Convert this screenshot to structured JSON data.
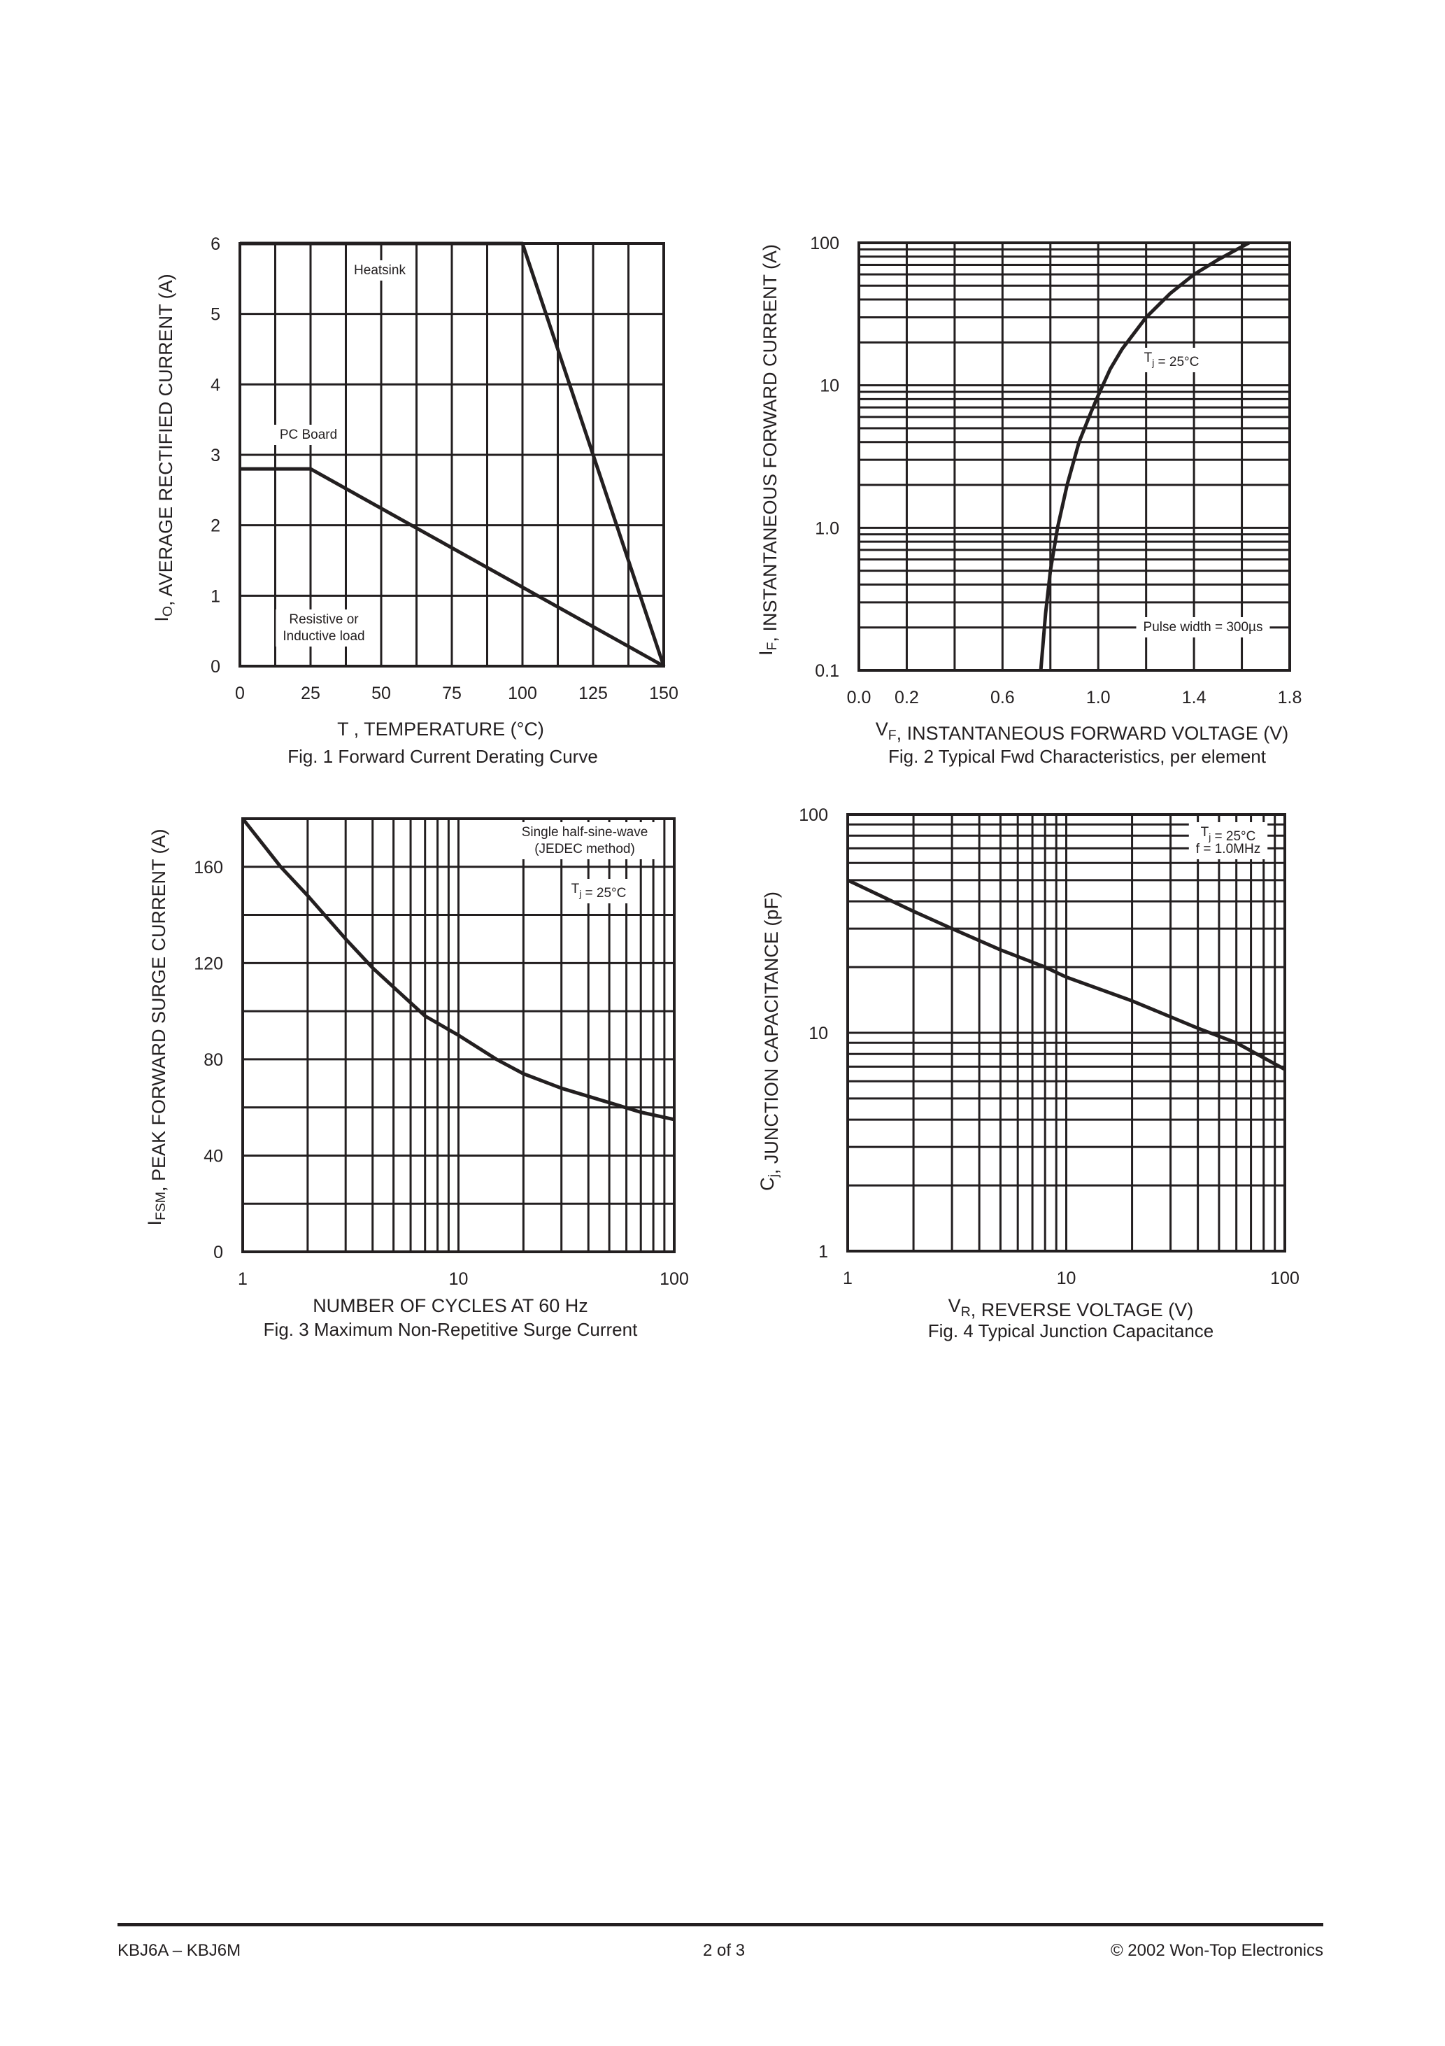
{
  "footer": {
    "left": "KBJ6A – KBJ6M",
    "center": "2 of 3",
    "right": "© 2002 Won-Top Electronics"
  },
  "colors": {
    "ink": "#231f20",
    "background": "#ffffff"
  },
  "chart_data": [
    {
      "type": "line",
      "caption": "Fig. 1  Forward Current Derating Curve",
      "xlabel": {
        "pre": "T",
        "sub": "",
        "post": " , TEMPERATURE (°C)"
      },
      "ylabel": {
        "pre": "I",
        "sub": "O",
        "post": ", AVERAGE RECTIFIED CURRENT (A)"
      },
      "xscale": "linear",
      "yscale": "linear",
      "xlim": [
        0,
        150
      ],
      "ylim": [
        0,
        6
      ],
      "xticks": [
        {
          "v": 0,
          "label": "0"
        },
        {
          "v": 25,
          "label": "25"
        },
        {
          "v": 50,
          "label": "50"
        },
        {
          "v": 75,
          "label": "75"
        },
        {
          "v": 100,
          "label": "100"
        },
        {
          "v": 125,
          "label": "125"
        },
        {
          "v": 150,
          "label": "150"
        }
      ],
      "yticks": [
        {
          "v": 0,
          "label": "0"
        },
        {
          "v": 1,
          "label": "1"
        },
        {
          "v": 2,
          "label": "2"
        },
        {
          "v": 3,
          "label": "3"
        },
        {
          "v": 4,
          "label": "4"
        },
        {
          "v": 5,
          "label": "5"
        },
        {
          "v": 6,
          "label": "6"
        }
      ],
      "grid": true,
      "series": [
        {
          "name": "Heatsink",
          "x": [
            0,
            100,
            150
          ],
          "y": [
            6,
            6,
            0
          ]
        },
        {
          "name": "PC Board",
          "x": [
            0,
            25,
            150
          ],
          "y": [
            2.8,
            2.8,
            0
          ]
        }
      ],
      "annotations": [
        {
          "lines": [
            [
              {
                "t": "Heatsink"
              }
            ]
          ]
        },
        {
          "lines": [
            [
              {
                "t": "PC Board"
              }
            ]
          ]
        },
        {
          "lines": [
            [
              {
                "t": "Resistive or"
              }
            ],
            [
              {
                "t": "Inductive load"
              }
            ]
          ]
        }
      ]
    },
    {
      "type": "line",
      "caption": "Fig. 2  Typical Fwd Characteristics, per element",
      "xlabel": {
        "pre": "V",
        "sub": "F",
        "post": ", INSTANTANEOUS FORWARD VOLTAGE (V)"
      },
      "ylabel": {
        "pre": "I",
        "sub": "F",
        "post": ", INSTANTANEOUS FORWARD CURRENT (A)"
      },
      "xscale": "linear",
      "yscale": "log",
      "xlim": [
        0,
        1.8
      ],
      "ylim": [
        0.1,
        100
      ],
      "xticks": [
        {
          "v": 0,
          "label": "0.0"
        },
        {
          "v": 0.2,
          "label": "0.2"
        },
        {
          "v": 0.6,
          "label": "0.6"
        },
        {
          "v": 1.0,
          "label": "1.0"
        },
        {
          "v": 1.4,
          "label": "1.4"
        },
        {
          "v": 1.8,
          "label": "1.8"
        }
      ],
      "yticks": [
        {
          "v": 0.1,
          "label": "0.1"
        },
        {
          "v": 1,
          "label": "1.0"
        },
        {
          "v": 10,
          "label": "10"
        },
        {
          "v": 100,
          "label": "100"
        }
      ],
      "grid": true,
      "series": [
        {
          "x": [
            0.76,
            0.78,
            0.8,
            0.83,
            0.87,
            0.92,
            0.97,
            1.0,
            1.05,
            1.1,
            1.2,
            1.3,
            1.4,
            1.5,
            1.63
          ],
          "y": [
            0.1,
            0.25,
            0.5,
            1.0,
            2.0,
            4.0,
            6.5,
            8.5,
            13,
            18,
            30,
            44,
            60,
            76,
            100
          ]
        }
      ],
      "annotations": [
        {
          "lines": [
            [
              {
                "t": "T"
              },
              {
                "sub": "j"
              },
              {
                "t": " = 25°C"
              }
            ]
          ]
        },
        {
          "lines": [
            [
              {
                "t": "Pulse width = 300µs"
              }
            ]
          ]
        }
      ]
    },
    {
      "type": "line",
      "caption": "Fig. 3  Maximum Non-Repetitive Surge Current",
      "xlabel": {
        "pre": "NUMBER OF CYCLES AT 60 Hz",
        "sub": "",
        "post": ""
      },
      "ylabel": {
        "pre": "I",
        "sub": "FSM",
        "post": ", PEAK FORWARD SURGE CURRENT (A)"
      },
      "xscale": "log",
      "yscale": "linear",
      "xlim": [
        1,
        100
      ],
      "ylim": [
        0,
        180
      ],
      "xticks": [
        {
          "v": 1,
          "label": "1"
        },
        {
          "v": 10,
          "label": "10"
        },
        {
          "v": 100,
          "label": "100"
        }
      ],
      "yticks": [
        {
          "v": 0,
          "label": "0"
        },
        {
          "v": 40,
          "label": "40"
        },
        {
          "v": 80,
          "label": "80"
        },
        {
          "v": 120,
          "label": "120"
        },
        {
          "v": 160,
          "label": "160"
        }
      ],
      "grid": true,
      "series": [
        {
          "x": [
            1,
            1.5,
            2,
            3,
            4,
            5,
            7,
            10,
            15,
            20,
            30,
            50,
            70,
            100
          ],
          "y": [
            180,
            160,
            148,
            130,
            118,
            110,
            98,
            90,
            80,
            74,
            68,
            62,
            58,
            55
          ]
        }
      ],
      "annotations": [
        {
          "lines": [
            [
              {
                "t": "Single half-sine-wave"
              }
            ],
            [
              {
                "t": "(JEDEC method)"
              }
            ]
          ]
        },
        {
          "lines": [
            [
              {
                "t": "T"
              },
              {
                "sub": "j"
              },
              {
                "t": " = 25°C"
              }
            ]
          ]
        }
      ]
    },
    {
      "type": "line",
      "caption": "Fig. 4  Typical Junction Capacitance",
      "xlabel": {
        "pre": "V",
        "sub": "R",
        "post": ", REVERSE VOLTAGE (V)"
      },
      "ylabel": {
        "pre": "C",
        "sub": "j",
        "post": ", JUNCTION CAPACITANCE (pF)"
      },
      "xscale": "log",
      "yscale": "log",
      "xlim": [
        1,
        100
      ],
      "ylim": [
        1,
        100
      ],
      "xticks": [
        {
          "v": 1,
          "label": "1"
        },
        {
          "v": 10,
          "label": "10"
        },
        {
          "v": 100,
          "label": "100"
        }
      ],
      "yticks": [
        {
          "v": 1,
          "label": "1"
        },
        {
          "v": 10,
          "label": "10"
        },
        {
          "v": 100,
          "label": "100"
        }
      ],
      "grid": true,
      "series": [
        {
          "x": [
            1,
            2,
            3,
            5,
            8,
            10,
            20,
            40,
            60,
            100
          ],
          "y": [
            50,
            36,
            30,
            24,
            20,
            18,
            14,
            10.5,
            9,
            6.8
          ]
        }
      ],
      "annotations": [
        {
          "lines": [
            [
              {
                "t": "T"
              },
              {
                "sub": "j"
              },
              {
                "t": " = 25°C"
              }
            ],
            [
              {
                "t": "f = 1.0MHz"
              }
            ]
          ]
        }
      ]
    }
  ]
}
